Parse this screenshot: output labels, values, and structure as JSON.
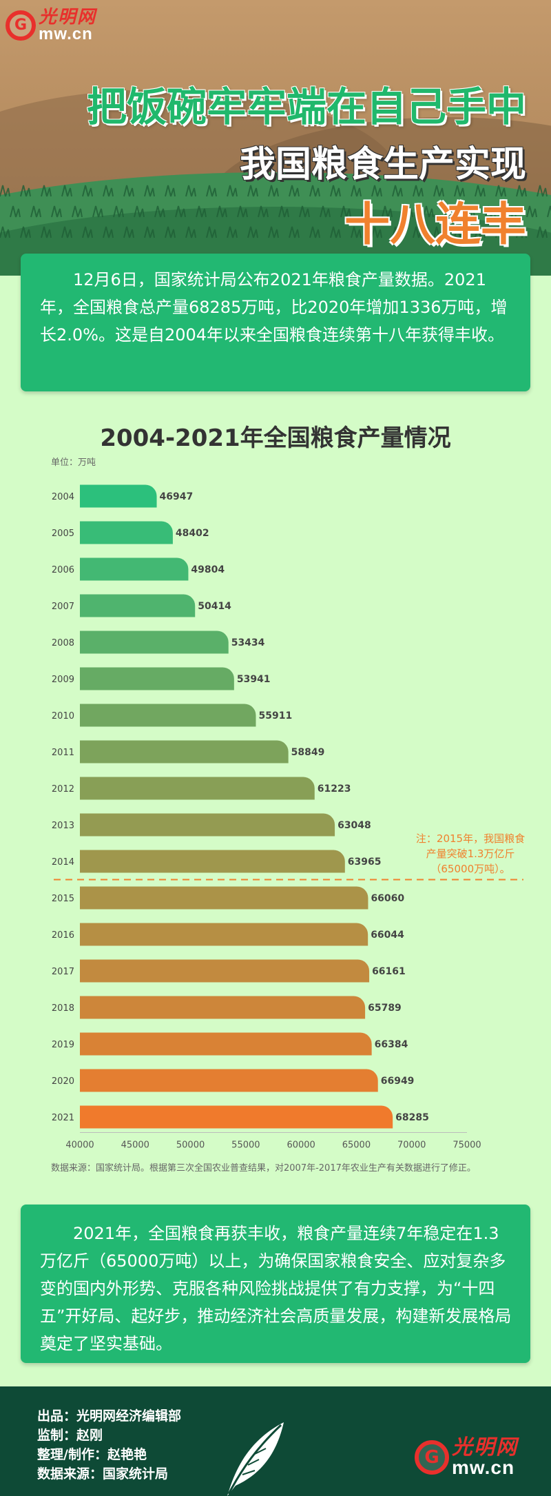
{
  "header": {
    "logo_cn": "光明网",
    "logo_en": "mw.cn",
    "title_line1": "把饭碗牢牢端在自己手中",
    "title_line2": "我国粮食生产实现",
    "title_line3": "十八连丰"
  },
  "intro": "12月6日，国家统计局公布2021年粮食产量数据。2021年，全国粮食总产量68285万吨，比2020年增加1336万吨，增长2.0%。这是自2004年以来全国粮食连续第十八年获得丰收。",
  "chart_data": {
    "type": "bar",
    "orientation": "horizontal",
    "title": "2004-2021年全国粮食产量情况",
    "unit_label": "单位：万吨",
    "categories": [
      "2004",
      "2005",
      "2006",
      "2007",
      "2008",
      "2009",
      "2010",
      "2011",
      "2012",
      "2013",
      "2014",
      "2015",
      "2016",
      "2017",
      "2018",
      "2019",
      "2020",
      "2021"
    ],
    "values": [
      46947,
      48402,
      49804,
      50414,
      53434,
      53941,
      55911,
      58849,
      61223,
      63048,
      63965,
      66060,
      66044,
      66161,
      65789,
      66384,
      66949,
      68285
    ],
    "value_labels": [
      "46947",
      "48402",
      "49804",
      "50414",
      "53434",
      "53941",
      "55911",
      "58849",
      "61223",
      "63048",
      "63965",
      "66060",
      "66044",
      "66161",
      "65789",
      "66384",
      "66949",
      "68285"
    ],
    "xlim": [
      40000,
      75000
    ],
    "x_ticks": [
      40000,
      45000,
      50000,
      55000,
      60000,
      65000,
      70000,
      75000
    ],
    "x_tick_labels": [
      "40000",
      "45000",
      "50000",
      "55000",
      "60000",
      "65000",
      "70000",
      "75000"
    ],
    "grid": false,
    "colors": {
      "start": "#2cc07c",
      "end": "#f07a2c",
      "annotation": "#f0812e"
    },
    "annotation": "注：2015年，我国粮食产量突破1.3万亿斤（65000万吨）。",
    "source": "数据来源：国家统计局。根据第三次全国农业普查结果，对2007年-2017年农业生产有关数据进行了修正。"
  },
  "summary": "2021年，全国粮食再获丰收，粮食产量连续7年稳定在1.3万亿斤（65000万吨）以上，为确保国家粮食安全、应对复杂多变的国内外形势、克服各种风险挑战提供了有力支撑，为“十四五”开好局、起好步，推动经济社会高质量发展，构建新发展格局奠定了坚实基础。",
  "footer": {
    "credit_1": "出品：光明网经济编辑部",
    "credit_2": "监制：赵刚",
    "credit_3": "整理/制作：赵艳艳",
    "credit_4": "数据来源：国家统计局",
    "logo_cn": "光明网",
    "logo_en": "mw.cn"
  }
}
